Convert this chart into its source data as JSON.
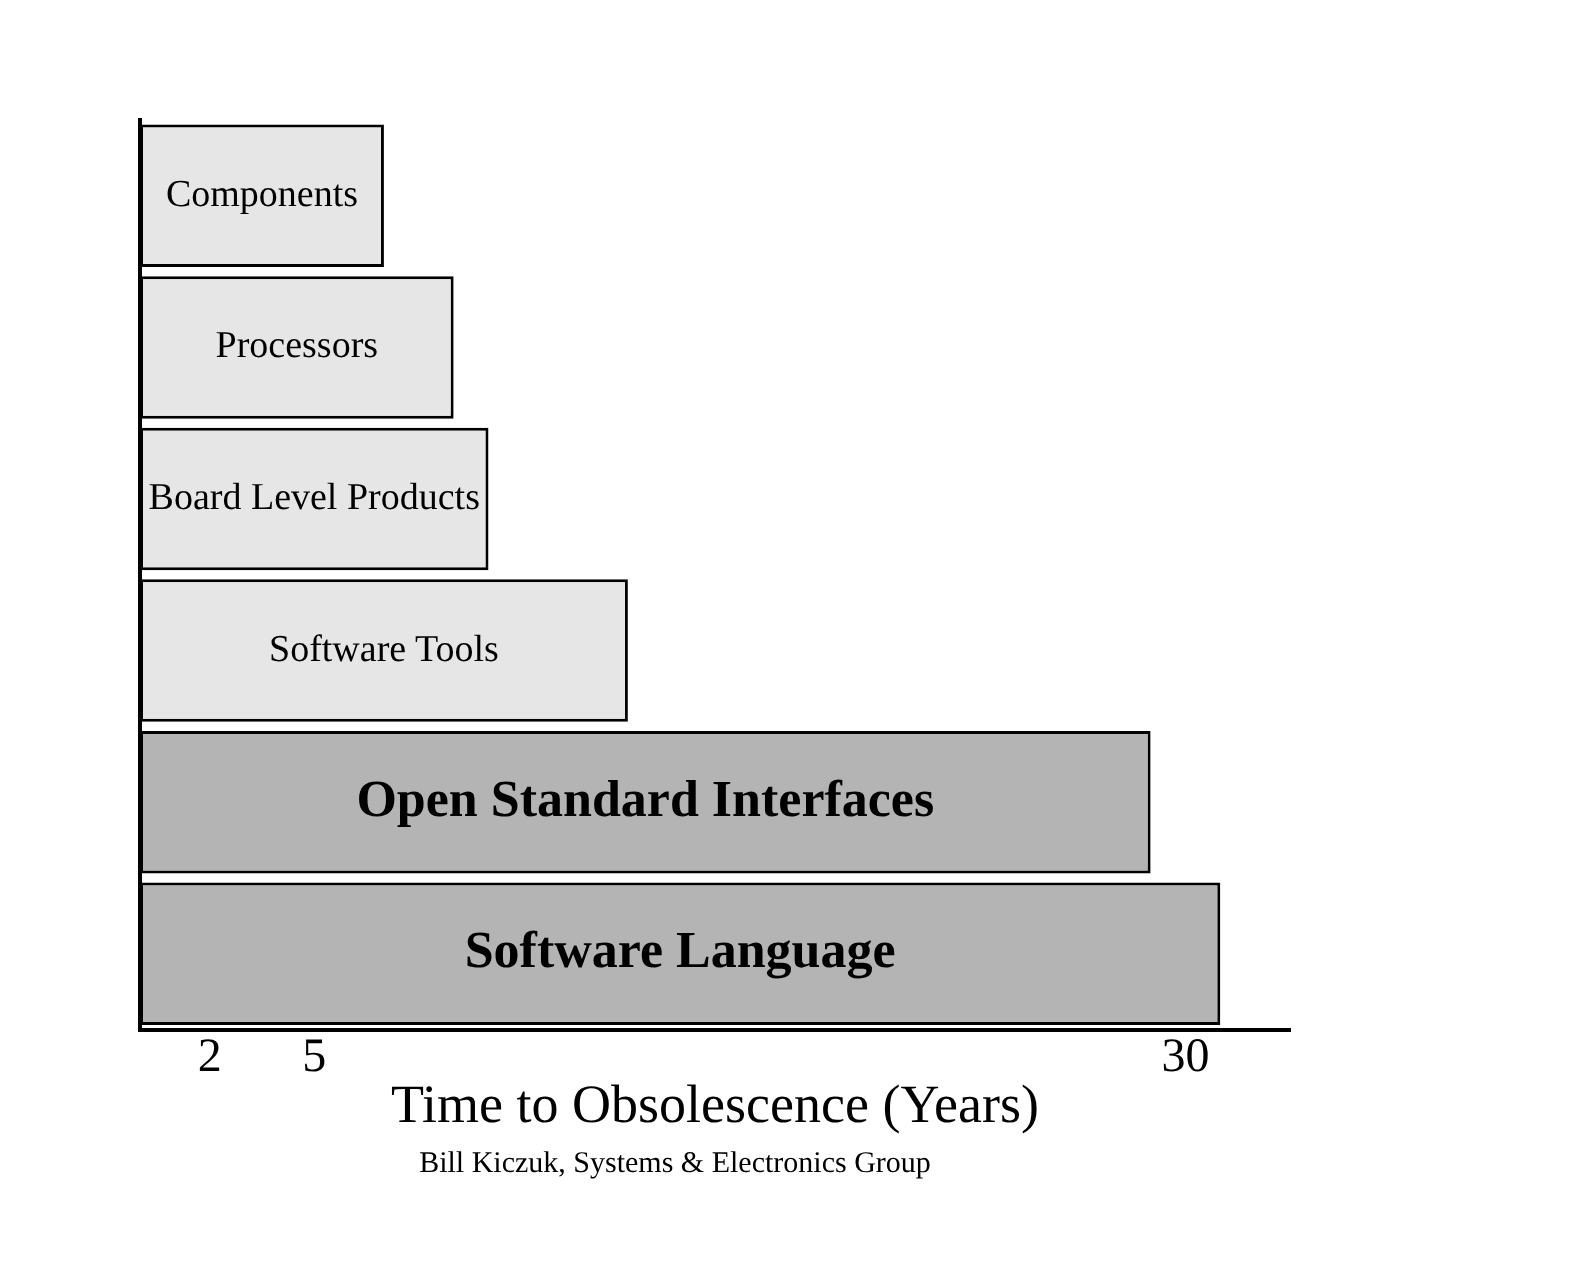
{
  "chart_data": {
    "type": "bar",
    "orientation": "horizontal",
    "xlabel": "Time to Obsolescence (Years)",
    "categories": [
      "Components",
      "Processors",
      "Board Level Products",
      "Software Tools",
      "Open Standard Interfaces",
      "Software Language"
    ],
    "values": [
      7,
      9,
      10,
      14,
      29,
      31
    ],
    "colors": [
      "#e6e6e6",
      "#e6e6e6",
      "#e6e6e6",
      "#e6e6e6",
      "#b4b4b4",
      "#b4b4b4"
    ],
    "xlim": [
      0,
      33
    ],
    "xticks": [
      2,
      5,
      30
    ],
    "grid": false,
    "legend": false,
    "annotations": [
      "Bill Kiczuk, Systems & Electronics Group"
    ]
  }
}
